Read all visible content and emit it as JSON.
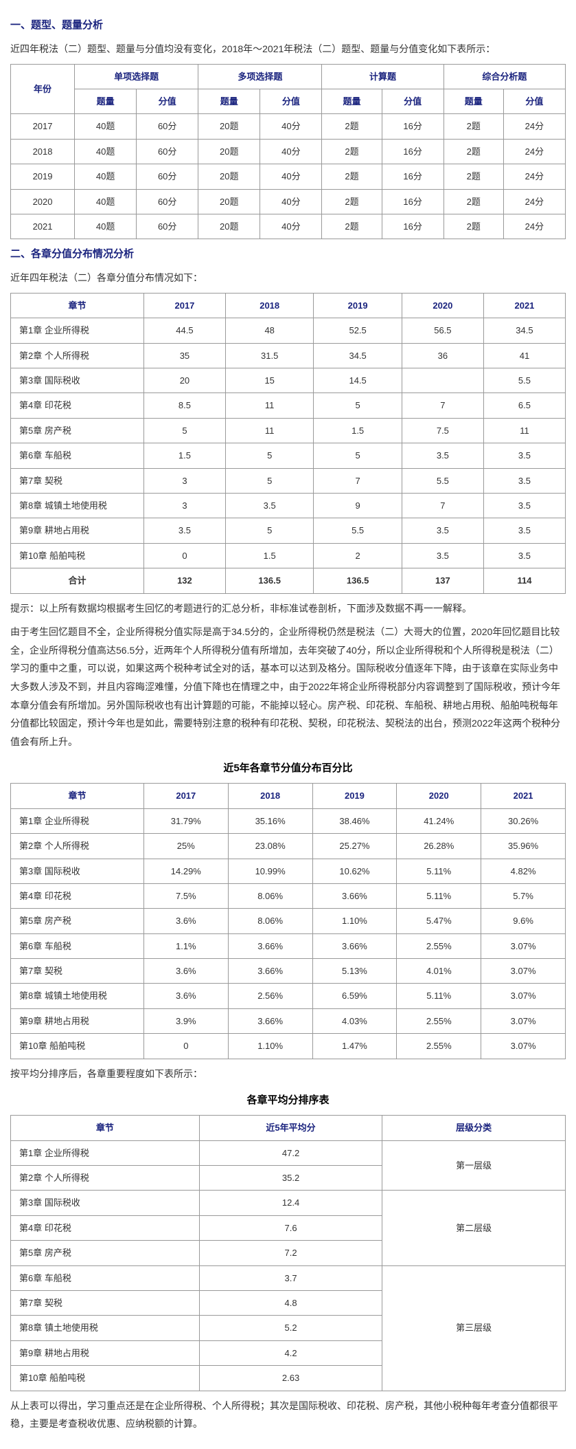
{
  "section1": {
    "title": "一、题型、题量分析",
    "intro": "近四年税法（二）题型、题量与分值均没有变化，2018年～2021年税法（二）题型、题量与分值变化如下表所示：",
    "table": {
      "headers": {
        "year": "年份",
        "groups": [
          {
            "name": "单项选择题",
            "cols": [
              "题量",
              "分值"
            ]
          },
          {
            "name": "多项选择题",
            "cols": [
              "题量",
              "分值"
            ]
          },
          {
            "name": "计算题",
            "cols": [
              "题量",
              "分值"
            ]
          },
          {
            "name": "综合分析题",
            "cols": [
              "题量",
              "分值"
            ]
          }
        ]
      },
      "rows": [
        {
          "year": "2017",
          "c1q": "40题",
          "c1s": "60分",
          "c2q": "20题",
          "c2s": "40分",
          "c3q": "2题",
          "c3s": "16分",
          "c4q": "2题",
          "c4s": "24分"
        },
        {
          "year": "2018",
          "c1q": "40题",
          "c1s": "60分",
          "c2q": "20题",
          "c2s": "40分",
          "c3q": "2题",
          "c3s": "16分",
          "c4q": "2题",
          "c4s": "24分"
        },
        {
          "year": "2019",
          "c1q": "40题",
          "c1s": "60分",
          "c2q": "20题",
          "c2s": "40分",
          "c3q": "2题",
          "c3s": "16分",
          "c4q": "2题",
          "c4s": "24分"
        },
        {
          "year": "2020",
          "c1q": "40题",
          "c1s": "60分",
          "c2q": "20题",
          "c2s": "40分",
          "c3q": "2题",
          "c3s": "16分",
          "c4q": "2题",
          "c4s": "24分"
        },
        {
          "year": "2021",
          "c1q": "40题",
          "c1s": "60分",
          "c2q": "20题",
          "c2s": "40分",
          "c3q": "2题",
          "c3s": "16分",
          "c4q": "2题",
          "c4s": "24分"
        }
      ]
    }
  },
  "section2": {
    "title": "二、各章分值分布情况分析",
    "intro": "近年四年税法（二）各章分值分布情况如下：",
    "table": {
      "headers": [
        "章节",
        "2017",
        "2018",
        "2019",
        "2020",
        "2021"
      ],
      "rows": [
        {
          "chapter": "第1章 企业所得税",
          "y17": "44.5",
          "y18": "48",
          "y19": "52.5",
          "y20": "56.5",
          "y21": "34.5"
        },
        {
          "chapter": "第2章 个人所得税",
          "y17": "35",
          "y18": "31.5",
          "y19": "34.5",
          "y20": "36",
          "y21": "41"
        },
        {
          "chapter": "第3章 国际税收",
          "y17": "20",
          "y18": "15",
          "y19": "14.5",
          "y20": "",
          "y21": "5.5"
        },
        {
          "chapter": "第4章 印花税",
          "y17": "8.5",
          "y18": "11",
          "y19": "5",
          "y20": "7",
          "y21": "6.5"
        },
        {
          "chapter": "第5章 房产税",
          "y17": "5",
          "y18": "11",
          "y19": "1.5",
          "y20": "7.5",
          "y21": "11"
        },
        {
          "chapter": "第6章 车船税",
          "y17": "1.5",
          "y18": "5",
          "y19": "5",
          "y20": "3.5",
          "y21": "3.5"
        },
        {
          "chapter": "第7章 契税",
          "y17": "3",
          "y18": "5",
          "y19": "7",
          "y20": "5.5",
          "y21": "3.5"
        },
        {
          "chapter": "第8章 城镇土地使用税",
          "y17": "3",
          "y18": "3.5",
          "y19": "9",
          "y20": "7",
          "y21": "3.5"
        },
        {
          "chapter": "第9章 耕地占用税",
          "y17": "3.5",
          "y18": "5",
          "y19": "5.5",
          "y20": "3.5",
          "y21": "3.5"
        },
        {
          "chapter": "第10章 船舶吨税",
          "y17": "0",
          "y18": "1.5",
          "y19": "2",
          "y20": "3.5",
          "y21": "3.5"
        }
      ],
      "total": {
        "chapter": "合计",
        "y17": "132",
        "y18": "136.5",
        "y19": "136.5",
        "y20": "137",
        "y21": "114"
      }
    },
    "note": "提示：以上所有数据均根据考生回忆的考题进行的汇总分析，非标准试卷剖析，下面涉及数据不再一一解释。",
    "analysis": "由于考生回忆题目不全，企业所得税分值实际是高于34.5分的，企业所得税仍然是税法（二）大哥大的位置，2020年回忆题目比较全，企业所得税分值高达56.5分，近两年个人所得税分值有所增加，去年突破了40分，所以企业所得税和个人所得税是税法（二）学习的重中之重，可以说，如果这两个税种考试全对的话，基本可以达到及格分。国际税收分值逐年下降，由于该章在实际业务中大多数人涉及不到，并且内容晦涩难懂，分值下降也在情理之中，由于2022年将企业所得税部分内容调整到了国际税收，预计今年本章分值会有所增加。另外国际税收也有出计算题的可能，不能掉以轻心。房产税、印花税、车船税、耕地占用税、船舶吨税每年分值都比较固定，预计今年也是如此，需要特别注意的税种有印花税、契税，印花税法、契税法的出台，预测2022年这两个税种分值会有所上升。"
  },
  "section3": {
    "title": "近5年各章节分值分布百分比",
    "table": {
      "headers": [
        "章节",
        "2017",
        "2018",
        "2019",
        "2020",
        "2021"
      ],
      "rows": [
        {
          "chapter": "第1章 企业所得税",
          "y17": "31.79%",
          "y18": "35.16%",
          "y19": "38.46%",
          "y20": "41.24%",
          "y21": "30.26%"
        },
        {
          "chapter": "第2章 个人所得税",
          "y17": "25%",
          "y18": "23.08%",
          "y19": "25.27%",
          "y20": "26.28%",
          "y21": "35.96%"
        },
        {
          "chapter": "第3章 国际税收",
          "y17": "14.29%",
          "y18": "10.99%",
          "y19": "10.62%",
          "y20": "5.11%",
          "y21": "4.82%"
        },
        {
          "chapter": "第4章 印花税",
          "y17": "7.5%",
          "y18": "8.06%",
          "y19": "3.66%",
          "y20": "5.11%",
          "y21": "5.7%"
        },
        {
          "chapter": "第5章 房产税",
          "y17": "3.6%",
          "y18": "8.06%",
          "y19": "1.10%",
          "y20": "5.47%",
          "y21": "9.6%"
        },
        {
          "chapter": "第6章 车船税",
          "y17": "1.1%",
          "y18": "3.66%",
          "y19": "3.66%",
          "y20": "2.55%",
          "y21": "3.07%"
        },
        {
          "chapter": "第7章 契税",
          "y17": "3.6%",
          "y18": "3.66%",
          "y19": "5.13%",
          "y20": "4.01%",
          "y21": "3.07%"
        },
        {
          "chapter": "第8章 城镇土地使用税",
          "y17": "3.6%",
          "y18": "2.56%",
          "y19": "6.59%",
          "y20": "5.11%",
          "y21": "3.07%"
        },
        {
          "chapter": "第9章 耕地占用税",
          "y17": "3.9%",
          "y18": "3.66%",
          "y19": "4.03%",
          "y20": "2.55%",
          "y21": "3.07%"
        },
        {
          "chapter": "第10章 船舶吨税",
          "y17": "0",
          "y18": "1.10%",
          "y19": "1.47%",
          "y20": "2.55%",
          "y21": "3.07%"
        }
      ]
    },
    "note": "按平均分排序后，各章重要程度如下表所示："
  },
  "section4": {
    "title": "各章平均分排序表",
    "table": {
      "headers": [
        "章节",
        "近5年平均分",
        "层级分类"
      ],
      "tiers": [
        {
          "label": "第一层级",
          "rows": [
            {
              "chapter": "第1章 企业所得税",
              "avg": "47.2"
            },
            {
              "chapter": "第2章 个人所得税",
              "avg": "35.2"
            }
          ]
        },
        {
          "label": "第二层级",
          "rows": [
            {
              "chapter": "第3章 国际税收",
              "avg": "12.4"
            },
            {
              "chapter": "第4章 印花税",
              "avg": "7.6"
            },
            {
              "chapter": "第5章 房产税",
              "avg": "7.2"
            }
          ]
        },
        {
          "label": "第三层级",
          "rows": [
            {
              "chapter": "第6章 车船税",
              "avg": "3.7"
            },
            {
              "chapter": "第7章 契税",
              "avg": "4.8"
            },
            {
              "chapter": "第8章 镇土地使用税",
              "avg": "5.2"
            },
            {
              "chapter": "第9章 耕地占用税",
              "avg": "4.2"
            },
            {
              "chapter": "第10章 船舶吨税",
              "avg": "2.63"
            }
          ]
        }
      ]
    },
    "conclusion": "从上表可以得出，学习重点还是在企业所得税、个人所得税；其次是国际税收、印花税、房产税，其他小税种每年考查分值都很平稳，主要是考查税收优惠、应纳税额的计算。"
  }
}
